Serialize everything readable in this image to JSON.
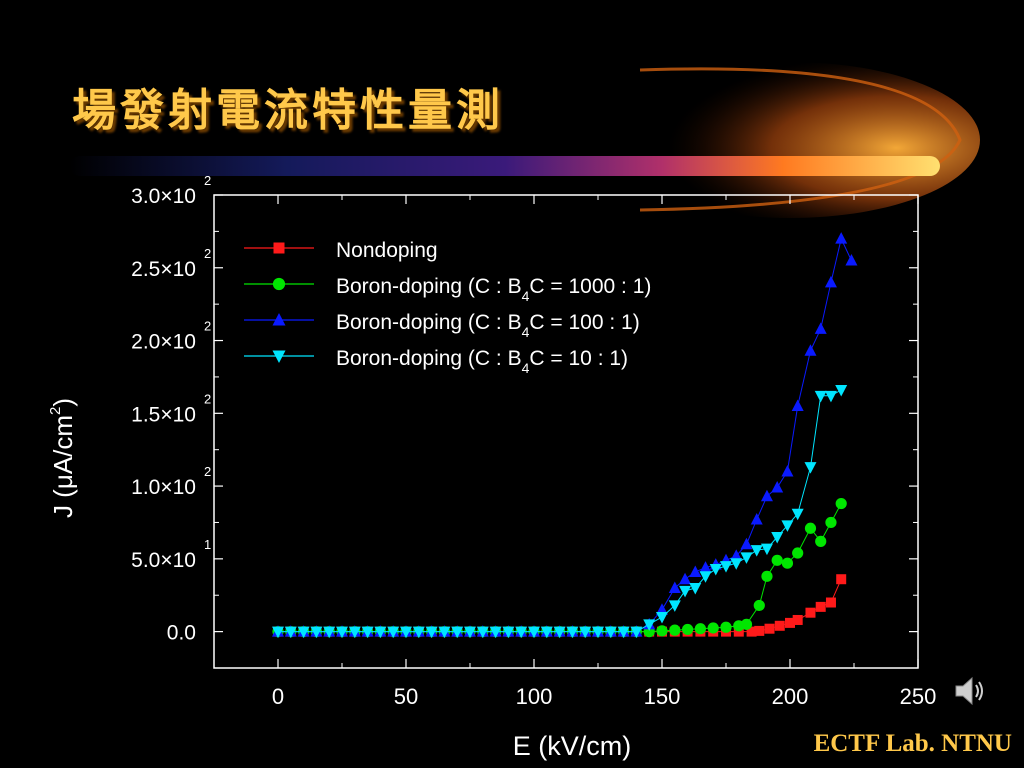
{
  "slide": {
    "title": "場發射電流特性量測",
    "footer": "ECTF Lab. NTNU",
    "accent_color": "#ffc84a",
    "background": "#000000"
  },
  "speaker": {
    "icon": "speaker-icon"
  },
  "chart_data": {
    "type": "line",
    "title": "",
    "xlabel": "E (kV/cm)",
    "ylabel": "J (μA/cm2)",
    "xlim": [
      -25,
      250
    ],
    "ylim": [
      -25,
      300
    ],
    "x_ticks": [
      0,
      50,
      100,
      150,
      200,
      250
    ],
    "x_tick_labels": [
      "0",
      "50",
      "100",
      "150",
      "200",
      "250"
    ],
    "y_ticks": [
      0,
      50,
      100,
      150,
      200,
      250,
      300
    ],
    "y_tick_labels": [
      {
        "mantissa": "0.0",
        "exp": ""
      },
      {
        "mantissa": "5.0×10",
        "exp": "1"
      },
      {
        "mantissa": "1.0×10",
        "exp": "2"
      },
      {
        "mantissa": "1.5×10",
        "exp": "2"
      },
      {
        "mantissa": "2.0×10",
        "exp": "2"
      },
      {
        "mantissa": "2.5×10",
        "exp": "2"
      },
      {
        "mantissa": "3.0×10",
        "exp": "2"
      }
    ],
    "grid": false,
    "legend_position": "top-left",
    "series": [
      {
        "name": "Nondoping",
        "name_sub": "",
        "name_end": "",
        "color": "#ff1a1a",
        "marker": "square",
        "points": [
          [
            0,
            0
          ],
          [
            5,
            0
          ],
          [
            10,
            0
          ],
          [
            15,
            0
          ],
          [
            20,
            0
          ],
          [
            25,
            0
          ],
          [
            30,
            0
          ],
          [
            35,
            0
          ],
          [
            40,
            0
          ],
          [
            45,
            0
          ],
          [
            50,
            0
          ],
          [
            55,
            0
          ],
          [
            60,
            0
          ],
          [
            65,
            0
          ],
          [
            70,
            0
          ],
          [
            75,
            0
          ],
          [
            80,
            0
          ],
          [
            85,
            0
          ],
          [
            90,
            0
          ],
          [
            95,
            0
          ],
          [
            100,
            0
          ],
          [
            105,
            0
          ],
          [
            110,
            0
          ],
          [
            115,
            0
          ],
          [
            120,
            0
          ],
          [
            125,
            0
          ],
          [
            130,
            0
          ],
          [
            135,
            0
          ],
          [
            140,
            0
          ],
          [
            145,
            0
          ],
          [
            150,
            0
          ],
          [
            155,
            0
          ],
          [
            160,
            0
          ],
          [
            165,
            0
          ],
          [
            170,
            0
          ],
          [
            175,
            0
          ],
          [
            180,
            0
          ],
          [
            185,
            0
          ],
          [
            188,
            0.5
          ],
          [
            192,
            2
          ],
          [
            196,
            4
          ],
          [
            200,
            6
          ],
          [
            203,
            8
          ],
          [
            208,
            13
          ],
          [
            212,
            17
          ],
          [
            216,
            20
          ],
          [
            220,
            36
          ]
        ]
      },
      {
        "name": "Boron-doping (C : B",
        "name_sub": "4",
        "name_end": "C = 1000 : 1)",
        "color": "#00e600",
        "marker": "circle",
        "points": [
          [
            0,
            0
          ],
          [
            5,
            0
          ],
          [
            10,
            0
          ],
          [
            15,
            0
          ],
          [
            20,
            0
          ],
          [
            25,
            0
          ],
          [
            30,
            0
          ],
          [
            35,
            0
          ],
          [
            40,
            0
          ],
          [
            45,
            0
          ],
          [
            50,
            0
          ],
          [
            55,
            0
          ],
          [
            60,
            0
          ],
          [
            65,
            0
          ],
          [
            70,
            0
          ],
          [
            75,
            0
          ],
          [
            80,
            0
          ],
          [
            85,
            0
          ],
          [
            90,
            0
          ],
          [
            95,
            0
          ],
          [
            100,
            0
          ],
          [
            105,
            0
          ],
          [
            110,
            0
          ],
          [
            115,
            0
          ],
          [
            120,
            0
          ],
          [
            125,
            0
          ],
          [
            130,
            0
          ],
          [
            135,
            0
          ],
          [
            140,
            0
          ],
          [
            145,
            0
          ],
          [
            150,
            0.5
          ],
          [
            155,
            1
          ],
          [
            160,
            1.5
          ],
          [
            165,
            2
          ],
          [
            170,
            2.5
          ],
          [
            175,
            3
          ],
          [
            180,
            4
          ],
          [
            183,
            5
          ],
          [
            188,
            18
          ],
          [
            191,
            38
          ],
          [
            195,
            49
          ],
          [
            199,
            47
          ],
          [
            203,
            54
          ],
          [
            208,
            71
          ],
          [
            212,
            62
          ],
          [
            216,
            75
          ],
          [
            220,
            88
          ]
        ]
      },
      {
        "name": "Boron-doping (C : B",
        "name_sub": "4",
        "name_end": "C = 100 : 1)",
        "color": "#0a1aff",
        "marker": "triangle-up",
        "points": [
          [
            0,
            0
          ],
          [
            5,
            0
          ],
          [
            10,
            0
          ],
          [
            15,
            0
          ],
          [
            20,
            0
          ],
          [
            25,
            0
          ],
          [
            30,
            0
          ],
          [
            35,
            0
          ],
          [
            40,
            0
          ],
          [
            45,
            0
          ],
          [
            50,
            0
          ],
          [
            55,
            0
          ],
          [
            60,
            0
          ],
          [
            65,
            0
          ],
          [
            70,
            0
          ],
          [
            75,
            0
          ],
          [
            80,
            0
          ],
          [
            85,
            0
          ],
          [
            90,
            0
          ],
          [
            95,
            0
          ],
          [
            100,
            0
          ],
          [
            105,
            0
          ],
          [
            110,
            0
          ],
          [
            115,
            0
          ],
          [
            120,
            0
          ],
          [
            125,
            0
          ],
          [
            130,
            0
          ],
          [
            135,
            0
          ],
          [
            140,
            0
          ],
          [
            145,
            5
          ],
          [
            150,
            15
          ],
          [
            155,
            30
          ],
          [
            159,
            36
          ],
          [
            163,
            41
          ],
          [
            167,
            44
          ],
          [
            171,
            46
          ],
          [
            175,
            49
          ],
          [
            179,
            52
          ],
          [
            183,
            60
          ],
          [
            187,
            77
          ],
          [
            191,
            93
          ],
          [
            195,
            99
          ],
          [
            199,
            110
          ],
          [
            203,
            155
          ],
          [
            208,
            193
          ],
          [
            212,
            208
          ],
          [
            216,
            240
          ],
          [
            220,
            270
          ],
          [
            224,
            255
          ]
        ]
      },
      {
        "name": "Boron-doping (C : B",
        "name_sub": "4",
        "name_end": "C = 10 : 1)",
        "color": "#00e5ff",
        "marker": "triangle-down",
        "points": [
          [
            0,
            0
          ],
          [
            5,
            0
          ],
          [
            10,
            0
          ],
          [
            15,
            0
          ],
          [
            20,
            0
          ],
          [
            25,
            0
          ],
          [
            30,
            0
          ],
          [
            35,
            0
          ],
          [
            40,
            0
          ],
          [
            45,
            0
          ],
          [
            50,
            0
          ],
          [
            55,
            0
          ],
          [
            60,
            0
          ],
          [
            65,
            0
          ],
          [
            70,
            0
          ],
          [
            75,
            0
          ],
          [
            80,
            0
          ],
          [
            85,
            0
          ],
          [
            90,
            0
          ],
          [
            95,
            0
          ],
          [
            100,
            0
          ],
          [
            105,
            0
          ],
          [
            110,
            0
          ],
          [
            115,
            0
          ],
          [
            120,
            0
          ],
          [
            125,
            0
          ],
          [
            130,
            0
          ],
          [
            135,
            0
          ],
          [
            140,
            0
          ],
          [
            145,
            5
          ],
          [
            150,
            10
          ],
          [
            155,
            18
          ],
          [
            159,
            28
          ],
          [
            163,
            30
          ],
          [
            167,
            38
          ],
          [
            171,
            43
          ],
          [
            175,
            45
          ],
          [
            179,
            47
          ],
          [
            183,
            51
          ],
          [
            187,
            56
          ],
          [
            191,
            57
          ],
          [
            195,
            65
          ],
          [
            199,
            73
          ],
          [
            203,
            81
          ],
          [
            208,
            113
          ],
          [
            212,
            162
          ],
          [
            216,
            162
          ],
          [
            220,
            166
          ]
        ]
      }
    ]
  }
}
